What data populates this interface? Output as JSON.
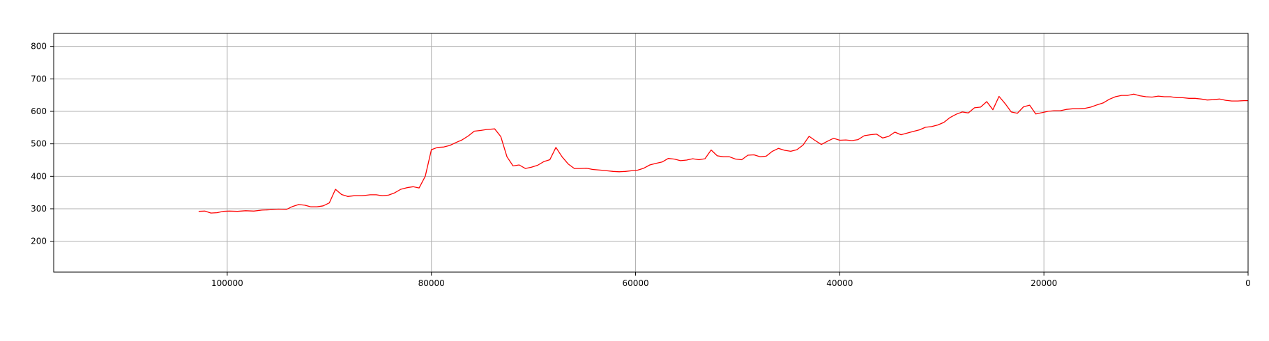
{
  "chart_data": {
    "type": "line",
    "title": "",
    "xlabel": "",
    "ylabel": "",
    "x_inverted": true,
    "xlim": [
      117000,
      0
    ],
    "ylim": [
      105,
      840
    ],
    "grid": true,
    "legend": "none",
    "xticks": [
      100000,
      80000,
      60000,
      40000,
      20000,
      0
    ],
    "yticks": [
      200,
      300,
      400,
      500,
      600,
      700,
      800
    ],
    "line_color": "#ff0000",
    "grid_color": "#b0b0b0",
    "series": [
      {
        "color": "#ff0000",
        "points": [
          [
            102800,
            292
          ],
          [
            102200,
            293
          ],
          [
            101600,
            287
          ],
          [
            101000,
            288
          ],
          [
            100400,
            292
          ],
          [
            99800,
            293
          ],
          [
            99000,
            292
          ],
          [
            98200,
            294
          ],
          [
            97400,
            293
          ],
          [
            96600,
            296
          ],
          [
            95800,
            297
          ],
          [
            95000,
            299
          ],
          [
            94200,
            298
          ],
          [
            93600,
            307
          ],
          [
            93000,
            313
          ],
          [
            92400,
            311
          ],
          [
            91800,
            306
          ],
          [
            91200,
            306
          ],
          [
            90600,
            309
          ],
          [
            90000,
            318
          ],
          [
            89400,
            360
          ],
          [
            88800,
            344
          ],
          [
            88200,
            338
          ],
          [
            87600,
            340
          ],
          [
            86800,
            340
          ],
          [
            86000,
            343
          ],
          [
            85400,
            343
          ],
          [
            84800,
            340
          ],
          [
            84200,
            342
          ],
          [
            83600,
            349
          ],
          [
            83000,
            360
          ],
          [
            82400,
            365
          ],
          [
            81800,
            368
          ],
          [
            81200,
            364
          ],
          [
            80600,
            400
          ],
          [
            80000,
            482
          ],
          [
            79400,
            489
          ],
          [
            78800,
            490
          ],
          [
            78200,
            495
          ],
          [
            77600,
            504
          ],
          [
            77000,
            512
          ],
          [
            76400,
            524
          ],
          [
            75800,
            539
          ],
          [
            75200,
            541
          ],
          [
            74600,
            544
          ],
          [
            73800,
            546
          ],
          [
            73200,
            522
          ],
          [
            72600,
            460
          ],
          [
            72000,
            432
          ],
          [
            71400,
            435
          ],
          [
            70800,
            424
          ],
          [
            70200,
            428
          ],
          [
            69600,
            434
          ],
          [
            69000,
            445
          ],
          [
            68400,
            451
          ],
          [
            67800,
            489
          ],
          [
            67200,
            460
          ],
          [
            66600,
            438
          ],
          [
            66000,
            424
          ],
          [
            65400,
            424
          ],
          [
            64800,
            425
          ],
          [
            64200,
            421
          ],
          [
            63400,
            419
          ],
          [
            62800,
            417
          ],
          [
            62200,
            415
          ],
          [
            61600,
            414
          ],
          [
            61000,
            415
          ],
          [
            60400,
            417
          ],
          [
            59800,
            419
          ],
          [
            59200,
            425
          ],
          [
            58600,
            435
          ],
          [
            58000,
            440
          ],
          [
            57400,
            444
          ],
          [
            56800,
            455
          ],
          [
            56200,
            453
          ],
          [
            55600,
            448
          ],
          [
            55000,
            450
          ],
          [
            54400,
            454
          ],
          [
            53800,
            451
          ],
          [
            53200,
            454
          ],
          [
            52600,
            481
          ],
          [
            52000,
            463
          ],
          [
            51400,
            460
          ],
          [
            50800,
            460
          ],
          [
            50200,
            453
          ],
          [
            49600,
            451
          ],
          [
            49000,
            465
          ],
          [
            48400,
            466
          ],
          [
            47800,
            460
          ],
          [
            47200,
            462
          ],
          [
            46600,
            477
          ],
          [
            46000,
            486
          ],
          [
            45400,
            480
          ],
          [
            44800,
            477
          ],
          [
            44200,
            482
          ],
          [
            43600,
            496
          ],
          [
            43000,
            523
          ],
          [
            42400,
            510
          ],
          [
            41800,
            498
          ],
          [
            41200,
            508
          ],
          [
            40600,
            517
          ],
          [
            40000,
            511
          ],
          [
            39400,
            512
          ],
          [
            38800,
            510
          ],
          [
            38200,
            513
          ],
          [
            37600,
            525
          ],
          [
            37000,
            528
          ],
          [
            36400,
            530
          ],
          [
            35800,
            518
          ],
          [
            35200,
            523
          ],
          [
            34600,
            536
          ],
          [
            34000,
            528
          ],
          [
            33400,
            533
          ],
          [
            32800,
            538
          ],
          [
            32200,
            543
          ],
          [
            31600,
            551
          ],
          [
            31000,
            553
          ],
          [
            30400,
            558
          ],
          [
            29800,
            566
          ],
          [
            29200,
            581
          ],
          [
            28600,
            591
          ],
          [
            28000,
            598
          ],
          [
            27400,
            595
          ],
          [
            26800,
            611
          ],
          [
            26200,
            613
          ],
          [
            25600,
            630
          ],
          [
            25000,
            605
          ],
          [
            24400,
            646
          ],
          [
            23800,
            624
          ],
          [
            23200,
            598
          ],
          [
            22600,
            594
          ],
          [
            22000,
            614
          ],
          [
            21400,
            619
          ],
          [
            20800,
            592
          ],
          [
            20200,
            596
          ],
          [
            19600,
            600
          ],
          [
            19000,
            602
          ],
          [
            18400,
            602
          ],
          [
            17800,
            606
          ],
          [
            17200,
            608
          ],
          [
            16600,
            608
          ],
          [
            16000,
            609
          ],
          [
            15400,
            613
          ],
          [
            14800,
            620
          ],
          [
            14200,
            626
          ],
          [
            13600,
            637
          ],
          [
            13000,
            645
          ],
          [
            12400,
            649
          ],
          [
            11800,
            649
          ],
          [
            11200,
            653
          ],
          [
            10600,
            648
          ],
          [
            10000,
            645
          ],
          [
            9400,
            644
          ],
          [
            8800,
            647
          ],
          [
            8200,
            645
          ],
          [
            7600,
            645
          ],
          [
            7000,
            642
          ],
          [
            6400,
            642
          ],
          [
            5800,
            640
          ],
          [
            5200,
            640
          ],
          [
            4600,
            638
          ],
          [
            4000,
            635
          ],
          [
            3400,
            636
          ],
          [
            2800,
            638
          ],
          [
            2200,
            634
          ],
          [
            1600,
            632
          ],
          [
            1000,
            632
          ],
          [
            400,
            633
          ],
          [
            -200,
            633
          ],
          [
            -800,
            636
          ],
          [
            -1400,
            639
          ],
          [
            -2000,
            638
          ]
        ]
      }
    ]
  }
}
